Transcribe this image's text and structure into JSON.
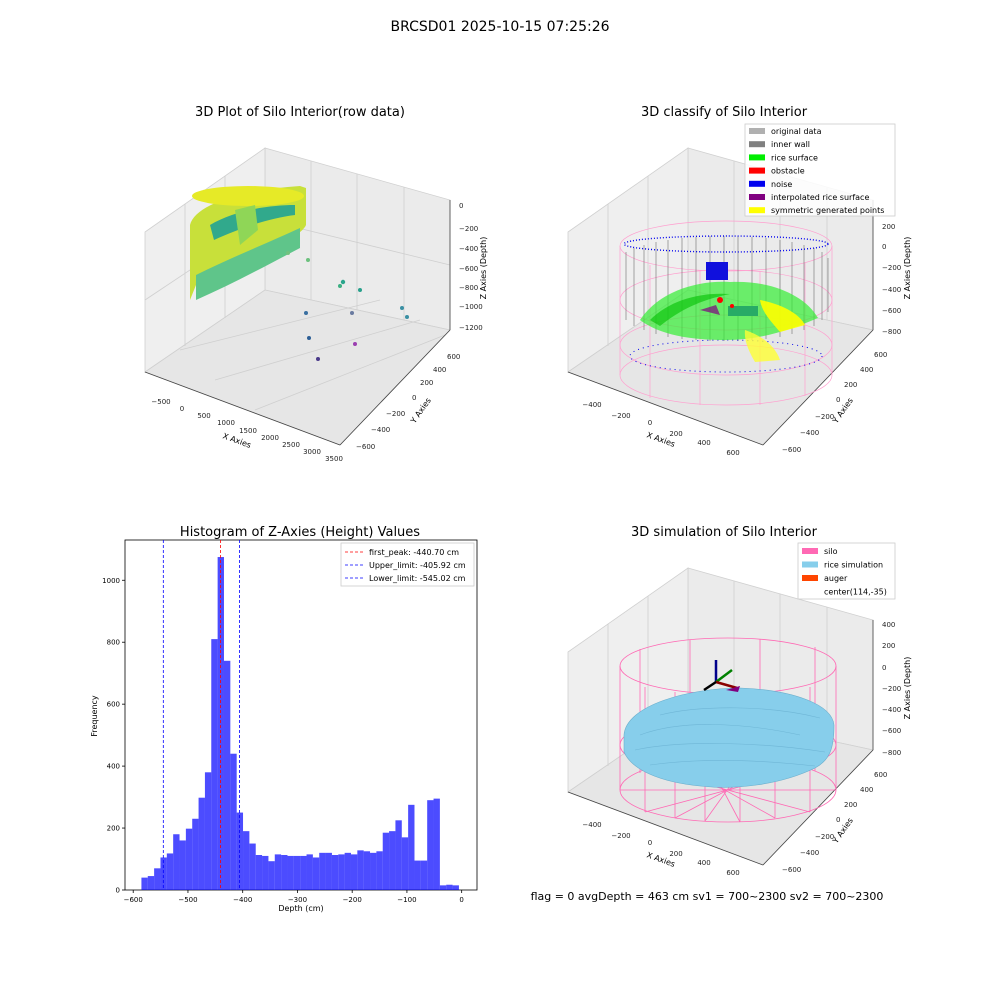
{
  "figure": {
    "suptitle": "BRCSD01 2025-10-15 07:25:26",
    "footer": "flag = 0     avgDepth = 463 cm  sv1 = 700~2300  sv2 = 700~2300"
  },
  "panels": {
    "raw": {
      "title": "3D Plot of Silo Interior(row data)",
      "xlabel": "X Axies",
      "ylabel": "Y Axies",
      "zlabel": "Z Axies (Depth)",
      "xticks": [
        "−500",
        "0",
        "500",
        "1000",
        "1500",
        "2000",
        "2500",
        "3000",
        "3500"
      ],
      "yticks": [
        "−600",
        "−400",
        "−200",
        "0",
        "200",
        "400",
        "600"
      ],
      "zticks": [
        "0",
        "−200",
        "−400",
        "−600",
        "−800",
        "−1000",
        "−1200"
      ]
    },
    "classify": {
      "title": "3D classify of Silo Interior",
      "xlabel": "X Axies",
      "ylabel": "Y Axies",
      "zlabel": "Z Axies (Depth)",
      "xticks": [
        "−400",
        "−200",
        "0",
        "200",
        "400",
        "600"
      ],
      "yticks": [
        "−600",
        "−400",
        "−200",
        "0",
        "200",
        "400",
        "600"
      ],
      "zticks": [
        "200",
        "0",
        "−200",
        "−400",
        "−600",
        "−800"
      ],
      "legend": [
        {
          "label": "original data",
          "color": "#b0b0b0"
        },
        {
          "label": "inner wall",
          "color": "#808080"
        },
        {
          "label": "rice surface",
          "color": "#00ee00"
        },
        {
          "label": "obstacle",
          "color": "#ff0000"
        },
        {
          "label": "noise",
          "color": "#0000ee"
        },
        {
          "label": "interpolated rice surface",
          "color": "#800080"
        },
        {
          "label": "symmetric generated points",
          "color": "#ffff00"
        }
      ]
    },
    "simulation": {
      "title": "3D simulation of Silo Interior",
      "xlabel": "X Axies",
      "ylabel": "Y Axies",
      "zlabel": "Z Axies (Depth)",
      "xticks": [
        "−400",
        "−200",
        "0",
        "200",
        "400",
        "600"
      ],
      "yticks": [
        "−600",
        "−400",
        "−200",
        "0",
        "200",
        "400",
        "600"
      ],
      "zticks": [
        "400",
        "200",
        "0",
        "−200",
        "−400",
        "−600",
        "−800"
      ],
      "legend": [
        {
          "label": "silo",
          "color": "#ff69b4"
        },
        {
          "label": "rice simulation",
          "color": "#87ceeb"
        },
        {
          "label": "auger",
          "color": "#ff4500"
        },
        {
          "label": "center(114,-35)",
          "color": ""
        }
      ]
    }
  },
  "chart_data": {
    "type": "bar",
    "title": "Histogram of Z-Axies (Height) Values",
    "xlabel": "Depth (cm)",
    "ylabel": "Frequency",
    "xlim": [
      -615,
      28
    ],
    "ylim": [
      0,
      1130
    ],
    "xticks": [
      -600,
      -500,
      -400,
      -300,
      -200,
      -100,
      0
    ],
    "xtick_labels": [
      "−600",
      "−500",
      "−400",
      "−300",
      "−200",
      "−100",
      "0"
    ],
    "yticks": [
      0,
      200,
      400,
      600,
      800,
      1000
    ],
    "bin_start": -585,
    "bin_width": 11.6,
    "values": [
      40,
      45,
      70,
      105,
      118,
      180,
      160,
      198,
      230,
      298,
      380,
      810,
      1075,
      740,
      440,
      250,
      190,
      150,
      113,
      110,
      93,
      115,
      113,
      110,
      110,
      110,
      115,
      105,
      120,
      120,
      113,
      115,
      120,
      115,
      128,
      125,
      120,
      125,
      185,
      190,
      225,
      170,
      275,
      95,
      95,
      290,
      295,
      15,
      17,
      15
    ],
    "bar_color": "#0000ff",
    "lines": [
      {
        "label": "first_peak: -440.70 cm",
        "value": -440.7,
        "color": "#ff0000"
      },
      {
        "label": "Upper_limit: -405.92 cm",
        "value": -405.92,
        "color": "#0000ff"
      },
      {
        "label": "Lower_limit: -545.02 cm",
        "value": -545.02,
        "color": "#0000ff"
      }
    ],
    "legend_position": "upper-right"
  }
}
